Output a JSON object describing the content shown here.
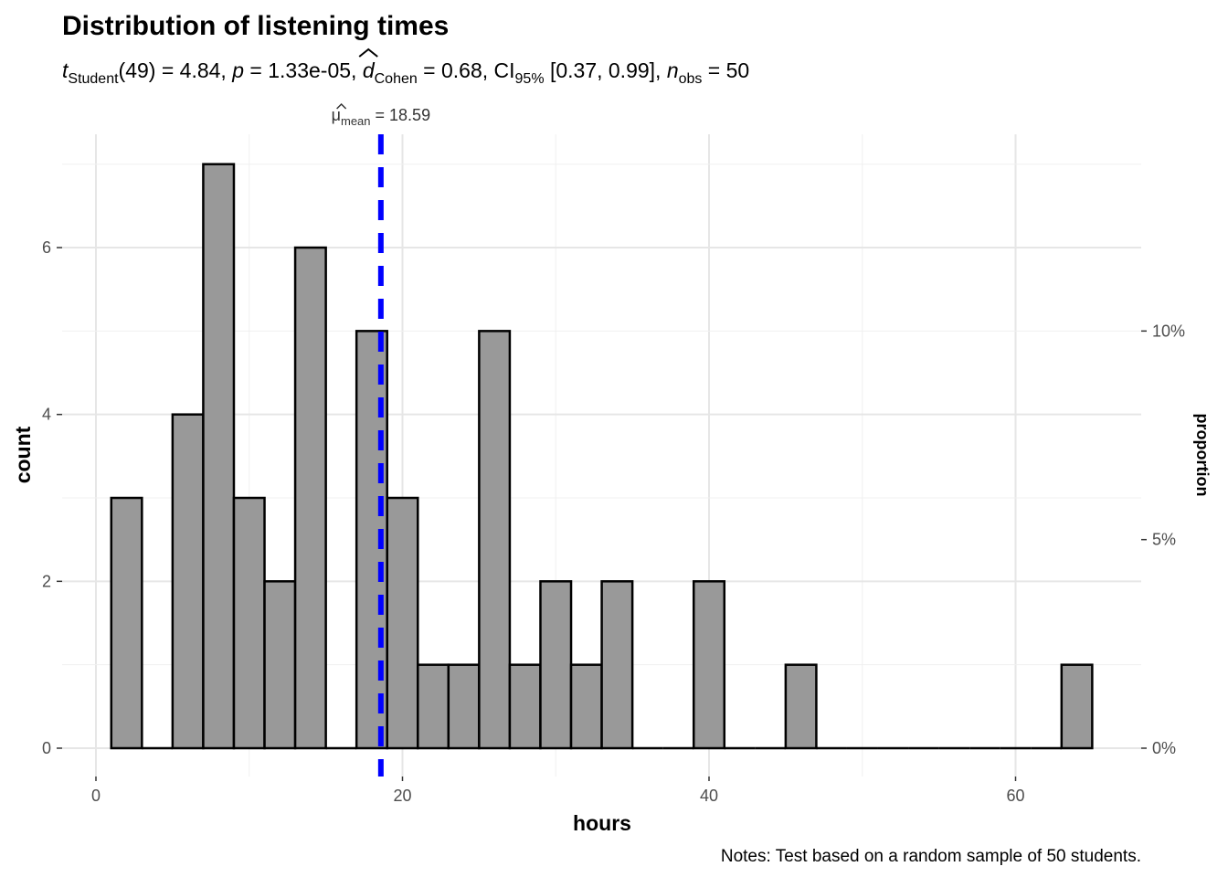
{
  "chart_data": {
    "type": "bar",
    "title": "Distribution of listening times",
    "subtitle": {
      "t_symbol": "t",
      "t_sub": "Student",
      "t_text": "(49) = 4.84, ",
      "p_symbol": "p",
      "p_text": " = 1.33e-05, ",
      "d_symbol": "d",
      "d_sub": "Cohen",
      "d_text": " = 0.68, CI",
      "ci_sub": "95%",
      "ci_text": " [0.37, 0.99], ",
      "n_symbol": "n",
      "n_sub": "obs",
      "n_text": " = 50"
    },
    "mean_line": {
      "symbol": "μ",
      "sub": "mean",
      "text": " = 18.59",
      "value": 18.59,
      "color": "#0000ff"
    },
    "xlabel": "hours",
    "ylabel": "count",
    "ylabel_right": "proportion",
    "caption": "Notes: Test based on a random sample of 50 students.",
    "xlim": [
      -2,
      68
    ],
    "ylim": [
      -0.35,
      7.3
    ],
    "x_ticks": [
      0,
      20,
      40,
      60
    ],
    "x_tick_labels": [
      "0",
      "20",
      "40",
      "60"
    ],
    "y_ticks": [
      0,
      2,
      4,
      6
    ],
    "y_tick_labels": [
      "0",
      "2",
      "4",
      "6"
    ],
    "right_ticks": [
      0,
      2.5,
      5
    ],
    "right_tick_labels": [
      "0%",
      "5%",
      "10%"
    ],
    "grid": true,
    "bin_width": 2,
    "bins_start": [
      1,
      3,
      5,
      7,
      9,
      11,
      13,
      15,
      17,
      19,
      21,
      23,
      25,
      27,
      29,
      31,
      33,
      35,
      37,
      39,
      41,
      43,
      45,
      47,
      49,
      51,
      53,
      55,
      57,
      59,
      61,
      63
    ],
    "values": [
      3,
      0,
      4,
      7,
      3,
      2,
      6,
      0,
      5,
      3,
      1,
      1,
      5,
      1,
      2,
      1,
      2,
      0,
      0,
      2,
      0,
      0,
      1,
      0,
      0,
      0,
      0,
      0,
      0,
      0,
      0,
      1
    ],
    "bar_color": "#999999"
  }
}
